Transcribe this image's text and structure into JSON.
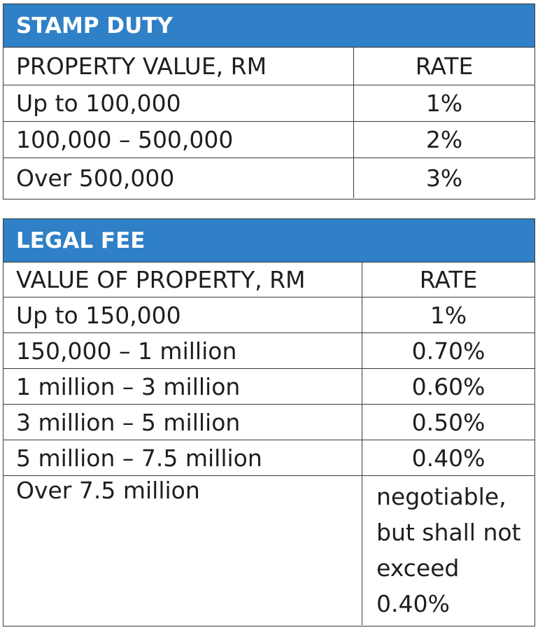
{
  "stamp_duty": {
    "title": "STAMP DUTY",
    "header": {
      "col1": "PROPERTY VALUE, RM",
      "col2": "RATE"
    },
    "rows": [
      {
        "range": "Up to 100,000",
        "rate": "1%"
      },
      {
        "range": "100,000 – 500,000",
        "rate": "2%"
      },
      {
        "range": "Over 500,000",
        "rate": "3%"
      }
    ]
  },
  "legal_fee": {
    "title": "LEGAL FEE",
    "header": {
      "col1": "VALUE OF PROPERTY, RM",
      "col2": "RATE"
    },
    "rows": [
      {
        "range": "Up to 150,000",
        "rate": "1%"
      },
      {
        "range": "150,000 – 1 million",
        "rate": "0.70%"
      },
      {
        "range": "1 million – 3 million",
        "rate": "0.60%"
      },
      {
        "range": "3 million – 5 million",
        "rate": "0.50%"
      },
      {
        "range": "5 million – 7.5 million",
        "rate": "0.40%"
      },
      {
        "range": "Over 7.5 million",
        "rate": "negotiable, but shall not exceed 0.40%"
      }
    ]
  },
  "colors": {
    "header_blue": "#2f80c6",
    "border": "#3a3a3a",
    "text": "#1e1e1e"
  }
}
